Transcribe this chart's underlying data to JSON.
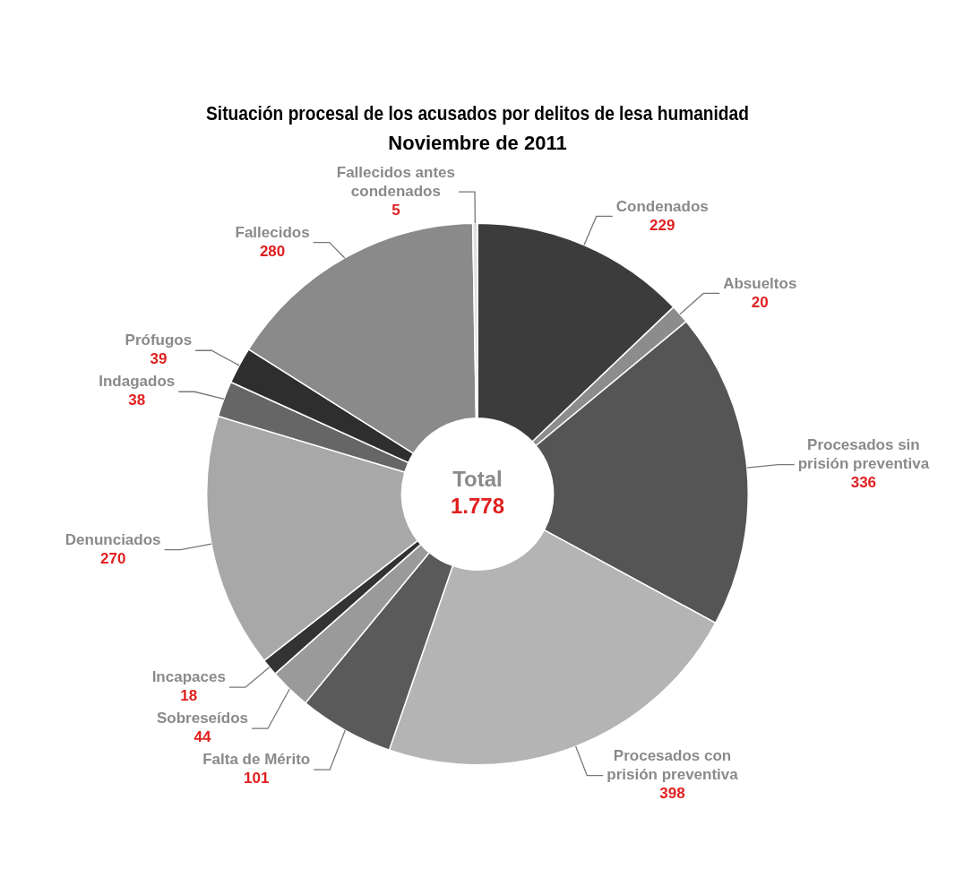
{
  "chart_data": {
    "type": "donut",
    "title": "Situación procesal de los acusados por delitos de lesa humanidad",
    "subtitle": "Noviembre de 2011",
    "categories": [
      "Condenados",
      "Absueltos",
      "Procesados sin prisión preventiva",
      "Procesados con prisión preventiva",
      "Falta de Mérito",
      "Sobreseídos",
      "Incapaces",
      "Denunciados",
      "Indagados",
      "Prófugos",
      "Fallecidos",
      "Fallecidos antes condenados"
    ],
    "values": [
      229,
      20,
      336,
      398,
      101,
      44,
      18,
      270,
      38,
      39,
      280,
      5
    ],
    "colors": [
      "#3c3c3c",
      "#8c8c8c",
      "#555555",
      "#b4b4b4",
      "#5a5a5a",
      "#9a9a9a",
      "#333333",
      "#a8a8a8",
      "#666666",
      "#2e2e2e",
      "#8a8a8a",
      "#e0e0e0"
    ],
    "annotations": [
      "Total",
      "1.778"
    ],
    "data_labels": true,
    "legend": false
  }
}
